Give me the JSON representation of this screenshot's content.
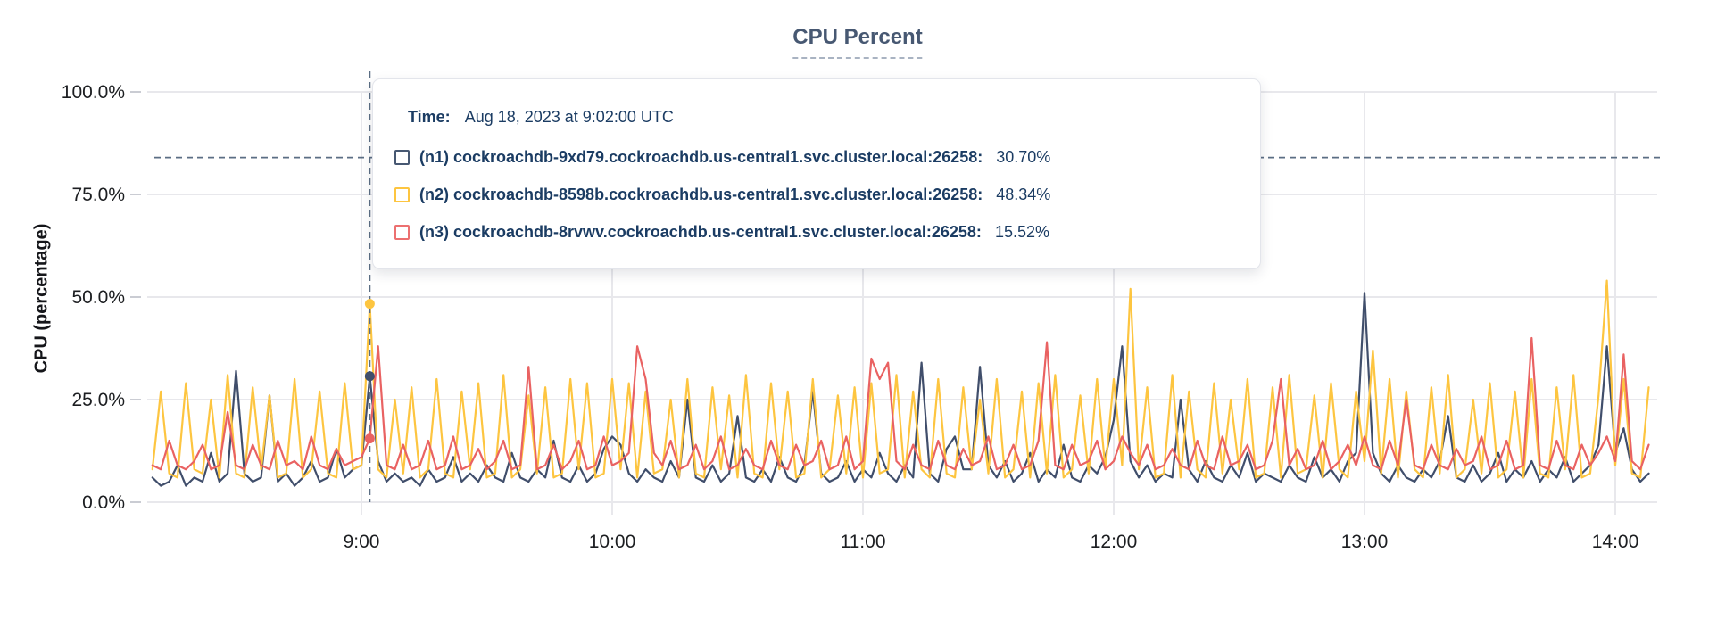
{
  "title": "CPU Percent",
  "ylabel": "CPU (percentage)",
  "chart_data": {
    "type": "line",
    "title": "CPU Percent",
    "xlabel": "",
    "ylabel": "CPU (percentage)",
    "ylim": [
      0,
      100
    ],
    "grid": true,
    "x_unit": "time-of-day",
    "x_start_minutes": 490,
    "x_step_minutes": 2,
    "x_ticks": [
      "9:00",
      "10:00",
      "11:00",
      "12:00",
      "13:00",
      "14:00"
    ],
    "x_tick_minutes": [
      540,
      600,
      660,
      720,
      780,
      840
    ],
    "y_ticks": [
      "0.0%",
      "25.0%",
      "50.0%",
      "75.0%",
      "100.0%"
    ],
    "y_tick_values": [
      0,
      25,
      50,
      75,
      100
    ],
    "series": [
      {
        "name": "(n1) cockroachdb-9xd79.cockroachdb.us-central1.svc.cluster.local:26258",
        "color": "#404e6b",
        "values": [
          6,
          4,
          5,
          9,
          4,
          6,
          5,
          12,
          5,
          7,
          32,
          7,
          5,
          6,
          26,
          5,
          7,
          4,
          6,
          10,
          5,
          6,
          13,
          6,
          8,
          9,
          30.7,
          10,
          5,
          7,
          5,
          6,
          4,
          8,
          5,
          6,
          11,
          5,
          7,
          5,
          9,
          6,
          5,
          12,
          6,
          5,
          8,
          6,
          15,
          6,
          5,
          9,
          5,
          7,
          13,
          16,
          14,
          7,
          5,
          8,
          6,
          5,
          10,
          6,
          25,
          6,
          5,
          9,
          5,
          7,
          21,
          6,
          5,
          8,
          5,
          11,
          6,
          5,
          9,
          27,
          7,
          5,
          6,
          10,
          5,
          8,
          6,
          12,
          7,
          5,
          9,
          6,
          34,
          7,
          5,
          13,
          16,
          8,
          8,
          33,
          9,
          6,
          10,
          5,
          7,
          12,
          5,
          8,
          6,
          14,
          6,
          5,
          9,
          7,
          11,
          20,
          38,
          10,
          6,
          9,
          5,
          7,
          6,
          25,
          8,
          5,
          10,
          6,
          5,
          9,
          6,
          12,
          5,
          7,
          6,
          5,
          9,
          6,
          5,
          11,
          6,
          8,
          5,
          10,
          12,
          51,
          12,
          7,
          5,
          9,
          6,
          5,
          8,
          6,
          10,
          21,
          6,
          5,
          9,
          5,
          7,
          12,
          5,
          8,
          6,
          10,
          5,
          8,
          6,
          11,
          5,
          7,
          9,
          14,
          38,
          12,
          18,
          8,
          5,
          7
        ]
      },
      {
        "name": "(n2) cockroachdb-8598b.cockroachdb.us-central1.svc.cluster.local:26258",
        "color": "#fdc540",
        "values": [
          8,
          27,
          7,
          6,
          29,
          8,
          7,
          25,
          6,
          31,
          7,
          6,
          28,
          8,
          26,
          6,
          7,
          30,
          6,
          8,
          27,
          7,
          6,
          29,
          8,
          9,
          48.34,
          8,
          6,
          25,
          7,
          28,
          6,
          8,
          30,
          7,
          6,
          27,
          8,
          29,
          6,
          7,
          31,
          6,
          8,
          26,
          7,
          28,
          6,
          7,
          30,
          8,
          29,
          6,
          7,
          30,
          8,
          29,
          6,
          27,
          7,
          8,
          25,
          6,
          30,
          7,
          6,
          28,
          8,
          26,
          6,
          31,
          7,
          6,
          29,
          8,
          27,
          6,
          7,
          30,
          6,
          8,
          26,
          7,
          28,
          6,
          29,
          7,
          8,
          31,
          6,
          27,
          8,
          6,
          30,
          7,
          6,
          28,
          8,
          25,
          7,
          30,
          6,
          8,
          27,
          6,
          29,
          7,
          31,
          6,
          8,
          26,
          7,
          30,
          8,
          30,
          9,
          52,
          8,
          28,
          6,
          7,
          31,
          6,
          27,
          8,
          6,
          29,
          7,
          25,
          8,
          30,
          6,
          7,
          28,
          6,
          31,
          7,
          8,
          26,
          6,
          29,
          8,
          6,
          27,
          10,
          37,
          7,
          30,
          6,
          27,
          8,
          6,
          28,
          7,
          31,
          6,
          8,
          25,
          7,
          29,
          6,
          8,
          27,
          6,
          30,
          7,
          6,
          28,
          8,
          31,
          6,
          7,
          26,
          54,
          9,
          30,
          7,
          6,
          28
        ]
      },
      {
        "name": "(n3) cockroachdb-8rvwv.cockroachdb.us-central1.svc.cluster.local:26258",
        "color": "#e96262",
        "values": [
          9,
          8,
          15,
          9,
          8,
          10,
          14,
          8,
          9,
          22,
          9,
          8,
          14,
          9,
          8,
          15,
          9,
          10,
          8,
          16,
          9,
          8,
          13,
          9,
          10,
          11,
          15.52,
          38,
          9,
          8,
          14,
          8,
          9,
          15,
          8,
          9,
          16,
          8,
          9,
          13,
          8,
          10,
          15,
          8,
          9,
          33,
          8,
          9,
          14,
          8,
          10,
          15,
          8,
          9,
          16,
          9,
          10,
          12,
          38,
          30,
          12,
          9,
          15,
          8,
          9,
          14,
          8,
          10,
          16,
          8,
          9,
          13,
          9,
          8,
          15,
          9,
          8,
          14,
          9,
          10,
          15,
          8,
          9,
          16,
          8,
          10,
          35,
          30,
          34,
          10,
          8,
          14,
          9,
          8,
          15,
          9,
          8,
          13,
          9,
          10,
          16,
          8,
          9,
          14,
          8,
          9,
          15,
          39,
          9,
          8,
          14,
          9,
          10,
          15,
          8,
          10,
          16,
          12,
          9,
          14,
          8,
          9,
          13,
          9,
          8,
          15,
          9,
          8,
          16,
          9,
          10,
          14,
          8,
          9,
          15,
          30,
          9,
          13,
          8,
          9,
          15,
          8,
          10,
          14,
          9,
          16,
          9,
          8,
          15,
          9,
          25,
          9,
          8,
          14,
          9,
          8,
          13,
          9,
          10,
          16,
          8,
          9,
          15,
          8,
          9,
          40,
          9,
          8,
          15,
          9,
          8,
          14,
          9,
          12,
          16,
          10,
          36,
          10,
          8,
          14
        ]
      }
    ]
  },
  "tooltip": {
    "time_label": "Time:",
    "time_value": "Aug 18, 2023 at 9:02:00 UTC",
    "hover_minutes": 542,
    "hover_line_percent": 84,
    "hover_values": [
      30.7,
      48.34,
      15.52
    ],
    "crosshair_color": "#5b6e84",
    "rows": [
      {
        "name": "(n1) cockroachdb-9xd79.cockroachdb.us-central1.svc.cluster.local:26258:",
        "value": "30.70%",
        "color": "#475872"
      },
      {
        "name": "(n2) cockroachdb-8598b.cockroachdb.us-central1.svc.cluster.local:26258:",
        "value": "48.34%",
        "color": "#fdc540"
      },
      {
        "name": "(n3) cockroachdb-8rvwv.cockroachdb.us-central1.svc.cluster.local:26258:",
        "value": "15.52%",
        "color": "#ec7070"
      }
    ]
  },
  "colors": {
    "grid": "#e8e8ec",
    "tick_text": "#1c1e21",
    "title_text": "#475872",
    "tooltip_text": "#1b3c63"
  }
}
